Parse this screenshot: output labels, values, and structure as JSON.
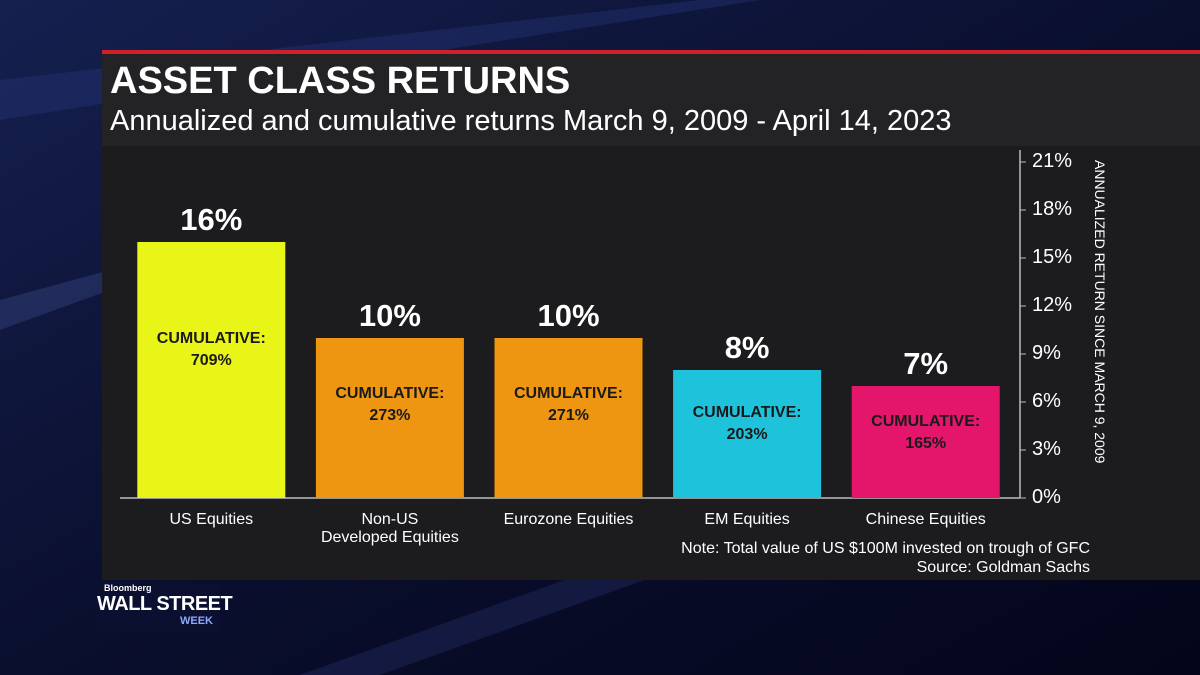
{
  "chart_data": {
    "type": "bar",
    "title": "ASSET CLASS RETURNS",
    "subtitle": "Annualized and cumulative returns March 9, 2009 - April 14, 2023",
    "categories": [
      "US Equities",
      "Non-US\nDeveloped Equities",
      "Eurozone Equities",
      "EM Equities",
      "Chinese Equities"
    ],
    "values": [
      16,
      10,
      10,
      8,
      7
    ],
    "value_labels": [
      "16%",
      "10%",
      "10%",
      "8%",
      "7%"
    ],
    "cumulative_labels": [
      "CUMULATIVE:\n709%",
      "CUMULATIVE:\n273%",
      "CUMULATIVE:\n271%",
      "CUMULATIVE:\n203%",
      "CUMULATIVE:\n165%"
    ],
    "colors": [
      "#e9f516",
      "#ee9512",
      "#ee9512",
      "#1ec2da",
      "#e4166b"
    ],
    "ylim": [
      0,
      21
    ],
    "yticks": [
      {
        "value": 0,
        "label": "0%"
      },
      {
        "value": 3,
        "label": "3%"
      },
      {
        "value": 6,
        "label": "6%"
      },
      {
        "value": 9,
        "label": "9%"
      },
      {
        "value": 12,
        "label": "12%"
      },
      {
        "value": 15,
        "label": "15%"
      },
      {
        "value": 18,
        "label": "18%"
      },
      {
        "value": 21,
        "label": "21%"
      }
    ],
    "y_axis_label": "ANNUALIZED RETURN SINCE MARCH 9, 2009",
    "y_axis_side": "right",
    "note": "Note: Total value of US $100M invested on trough of GFC",
    "source": "Source: Goldman Sachs",
    "logo": {
      "brand": "Bloomberg",
      "show": "WALL STREET",
      "subtitle": "WEEK"
    }
  }
}
